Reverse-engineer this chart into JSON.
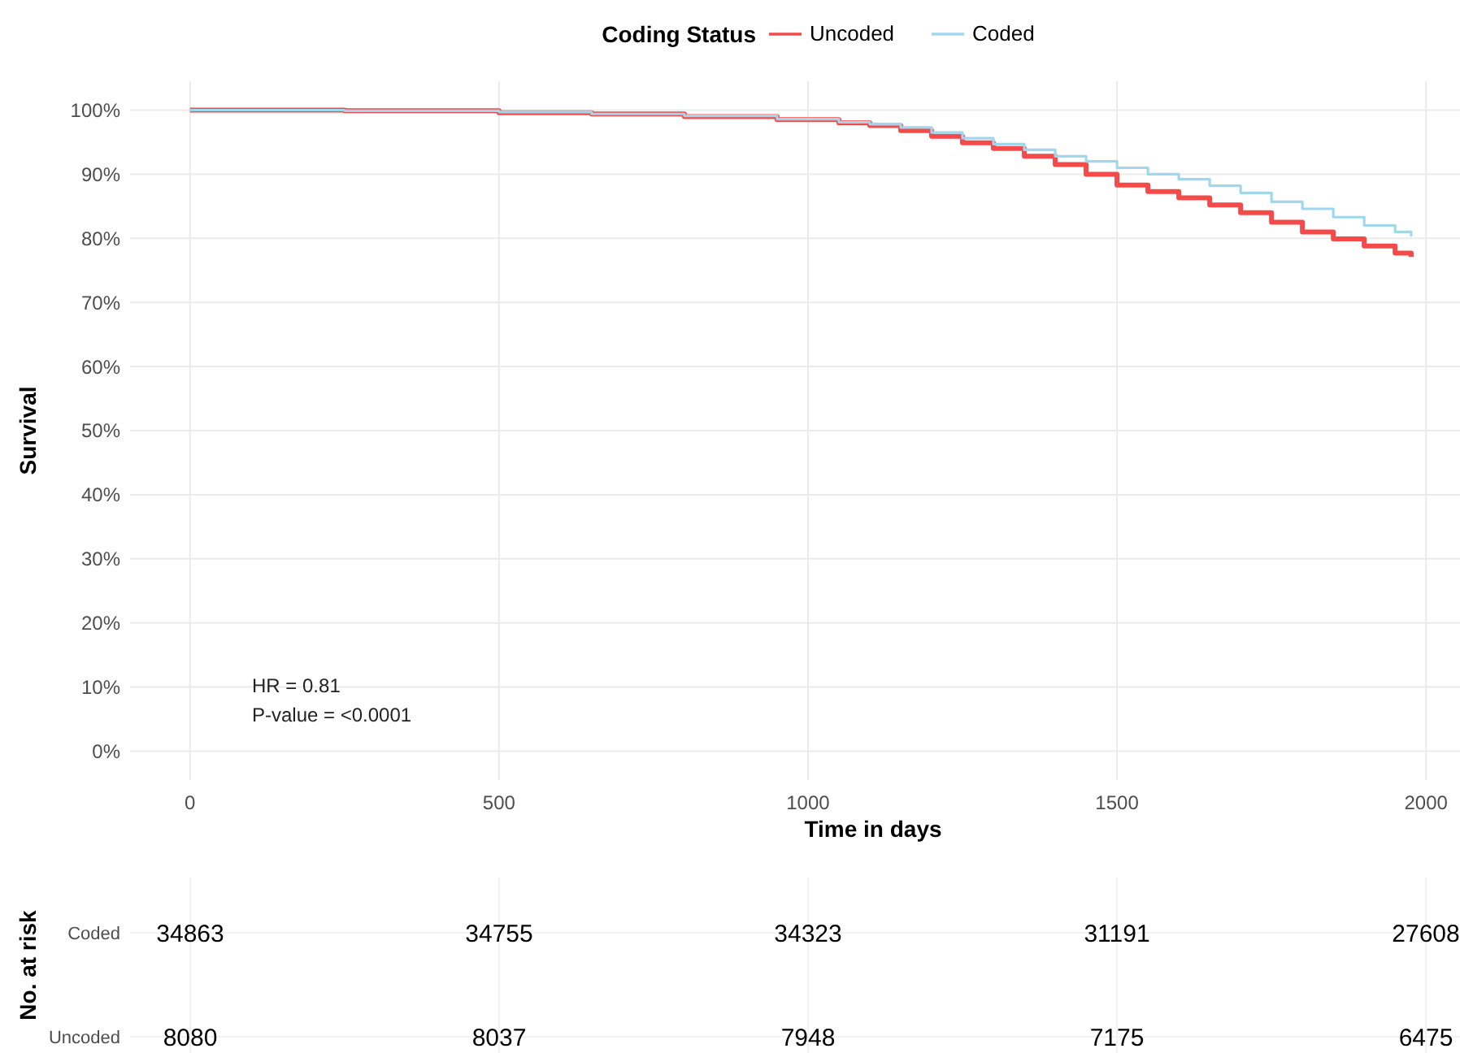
{
  "chart_data": [
    {
      "type": "step",
      "legend_title": "Coding Status",
      "legend": "top",
      "xlabel": "Time in days",
      "ylabel": "Survival",
      "grid": true,
      "x": [
        0,
        250,
        500,
        650,
        800,
        950,
        1050,
        1100,
        1150,
        1200,
        1250,
        1300,
        1350,
        1400,
        1450,
        1500,
        1550,
        1600,
        1650,
        1700,
        1750,
        1800,
        1850,
        1900,
        1950,
        1976
      ],
      "series": [
        {
          "name": "Uncoded",
          "color": "#f44a4a",
          "values": [
            100,
            99.9,
            99.6,
            99.4,
            99.0,
            98.5,
            98.0,
            97.6,
            96.8,
            95.9,
            94.9,
            94.0,
            92.8,
            91.5,
            90.0,
            88.3,
            87.3,
            86.3,
            85.2,
            84.0,
            82.5,
            81.0,
            79.9,
            78.8,
            77.7,
            77.1
          ]
        },
        {
          "name": "Coded",
          "color": "#9fd8ec",
          "values": [
            100,
            99.9,
            99.7,
            99.4,
            99.1,
            98.6,
            98.1,
            97.8,
            97.3,
            96.5,
            95.6,
            94.7,
            93.8,
            92.8,
            92.0,
            91.0,
            90.0,
            89.2,
            88.2,
            87.1,
            85.7,
            84.6,
            83.3,
            82.0,
            81.0,
            80.3
          ]
        }
      ],
      "xlim": [
        -97,
        2055
      ],
      "xticks": [
        0,
        500,
        1000,
        1500,
        2000
      ],
      "ylim": [
        -4.5,
        104.5
      ],
      "yticks": [
        {
          "value": 0,
          "label": "0%"
        },
        {
          "value": 10,
          "label": "10%"
        },
        {
          "value": 20,
          "label": "20%"
        },
        {
          "value": 30,
          "label": "30%"
        },
        {
          "value": 40,
          "label": "40%"
        },
        {
          "value": 50,
          "label": "50%"
        },
        {
          "value": 60,
          "label": "60%"
        },
        {
          "value": 70,
          "label": "70%"
        },
        {
          "value": 80,
          "label": "80%"
        },
        {
          "value": 90,
          "label": "90%"
        },
        {
          "value": 100,
          "label": "100%"
        }
      ],
      "annotations": [
        "HR = 0.81",
        "P-value = <0.0001"
      ]
    },
    {
      "type": "heatmap",
      "ylabel": "No. at risk",
      "categories": [
        null,
        null,
        null,
        null,
        null
      ],
      "y_categories": [
        "Coded",
        "Uncoded"
      ],
      "data_labels": true,
      "grid": true,
      "cells": [
        [
          34863,
          34755,
          34323,
          31191,
          27608
        ],
        [
          8080,
          8037,
          7948,
          7175,
          6475
        ]
      ]
    }
  ]
}
